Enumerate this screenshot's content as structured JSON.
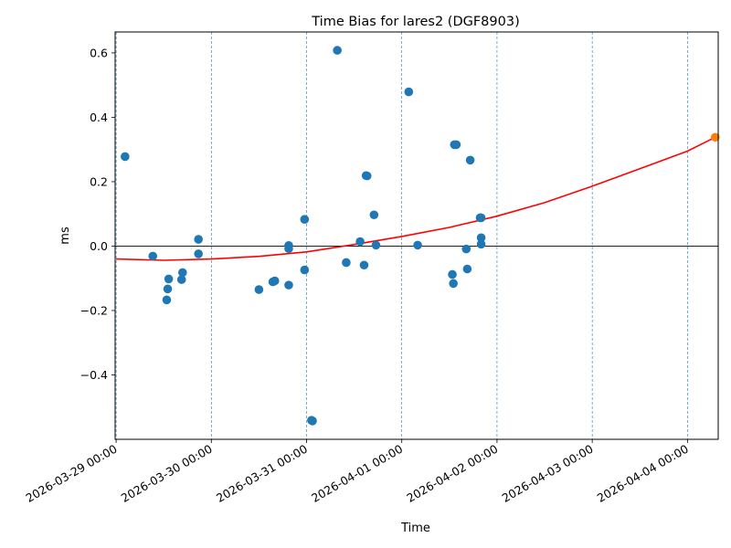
{
  "chart_data": {
    "type": "scatter",
    "title": "Time Bias for lares2 (DGF8903)",
    "xlabel": "Time",
    "ylabel": "ms",
    "xlim": [
      "2026-03-28 23:45",
      "2026-04-04 07:45"
    ],
    "ylim": [
      -0.6,
      0.665
    ],
    "x_ticks": [
      "2026-03-29 00:00",
      "2026-03-30 00:00",
      "2026-03-31 00:00",
      "2026-04-01 00:00",
      "2026-04-02 00:00",
      "2026-04-03 00:00",
      "2026-04-04 00:00"
    ],
    "y_ticks": [
      "0.6",
      "0.4",
      "0.2",
      "0.0",
      "−0.2",
      "−0.4"
    ],
    "y_tick_values": [
      0.6,
      0.4,
      0.2,
      0.0,
      -0.2,
      -0.4
    ],
    "vertical_grid": true,
    "zero_line": true,
    "colors": {
      "points": "#1f77b4",
      "fit": "#ff0000",
      "extra_point": "#ff7f0e",
      "grid": "#1f77b4"
    },
    "points": [
      {
        "x": "2026-03-29 02:15",
        "y": 0.278
      },
      {
        "x": "2026-03-29 09:15",
        "y": -0.031
      },
      {
        "x": "2026-03-29 12:45",
        "y": -0.167
      },
      {
        "x": "2026-03-29 13:00",
        "y": -0.133
      },
      {
        "x": "2026-03-29 13:15",
        "y": -0.102
      },
      {
        "x": "2026-03-29 16:30",
        "y": -0.104
      },
      {
        "x": "2026-03-29 16:45",
        "y": -0.082
      },
      {
        "x": "2026-03-29 20:45",
        "y": 0.021
      },
      {
        "x": "2026-03-29 20:45",
        "y": -0.024
      },
      {
        "x": "2026-03-30 12:00",
        "y": -0.135
      },
      {
        "x": "2026-03-30 15:30",
        "y": -0.111
      },
      {
        "x": "2026-03-30 16:00",
        "y": -0.108
      },
      {
        "x": "2026-03-30 19:30",
        "y": -0.121
      },
      {
        "x": "2026-03-30 19:30",
        "y": 0.002
      },
      {
        "x": "2026-03-30 19:30",
        "y": -0.008
      },
      {
        "x": "2026-03-30 23:30",
        "y": 0.083
      },
      {
        "x": "2026-03-30 23:30",
        "y": -0.074
      },
      {
        "x": "2026-03-31 01:15",
        "y": -0.541
      },
      {
        "x": "2026-03-31 01:30",
        "y": -0.543
      },
      {
        "x": "2026-03-31 07:45",
        "y": 0.608
      },
      {
        "x": "2026-03-31 10:00",
        "y": -0.051
      },
      {
        "x": "2026-03-31 13:30",
        "y": 0.014
      },
      {
        "x": "2026-03-31 14:30",
        "y": -0.059
      },
      {
        "x": "2026-03-31 15:00",
        "y": 0.219
      },
      {
        "x": "2026-03-31 15:15",
        "y": 0.218
      },
      {
        "x": "2026-03-31 17:00",
        "y": 0.097
      },
      {
        "x": "2026-03-31 17:30",
        "y": 0.003
      },
      {
        "x": "2026-04-01 01:45",
        "y": 0.479
      },
      {
        "x": "2026-04-01 04:00",
        "y": 0.003
      },
      {
        "x": "2026-04-01 12:45",
        "y": -0.088
      },
      {
        "x": "2026-04-01 13:00",
        "y": -0.116
      },
      {
        "x": "2026-04-01 13:15",
        "y": 0.315
      },
      {
        "x": "2026-04-01 13:45",
        "y": 0.315
      },
      {
        "x": "2026-04-01 16:15",
        "y": -0.009
      },
      {
        "x": "2026-04-01 16:30",
        "y": -0.071
      },
      {
        "x": "2026-04-01 17:15",
        "y": 0.267
      },
      {
        "x": "2026-04-01 19:45",
        "y": 0.088
      },
      {
        "x": "2026-04-01 20:00",
        "y": 0.088
      },
      {
        "x": "2026-04-01 20:00",
        "y": 0.026
      },
      {
        "x": "2026-04-01 20:00",
        "y": 0.006
      }
    ],
    "extra_points": [
      {
        "x": "2026-04-04 07:00",
        "y": 0.338
      }
    ],
    "fit_curve": [
      {
        "x": "2026-03-29 00:00",
        "y": -0.04
      },
      {
        "x": "2026-03-29 12:00",
        "y": -0.044
      },
      {
        "x": "2026-03-30 00:00",
        "y": -0.04
      },
      {
        "x": "2026-03-30 12:00",
        "y": -0.032
      },
      {
        "x": "2026-03-31 00:00",
        "y": -0.018
      },
      {
        "x": "2026-03-31 12:00",
        "y": 0.005
      },
      {
        "x": "2026-04-01 00:00",
        "y": 0.03
      },
      {
        "x": "2026-04-01 12:00",
        "y": 0.058
      },
      {
        "x": "2026-04-02 00:00",
        "y": 0.093
      },
      {
        "x": "2026-04-02 12:00",
        "y": 0.135
      },
      {
        "x": "2026-04-03 00:00",
        "y": 0.186
      },
      {
        "x": "2026-04-03 12:00",
        "y": 0.24
      },
      {
        "x": "2026-04-04 00:00",
        "y": 0.295
      },
      {
        "x": "2026-04-04 07:00",
        "y": 0.338
      }
    ]
  }
}
